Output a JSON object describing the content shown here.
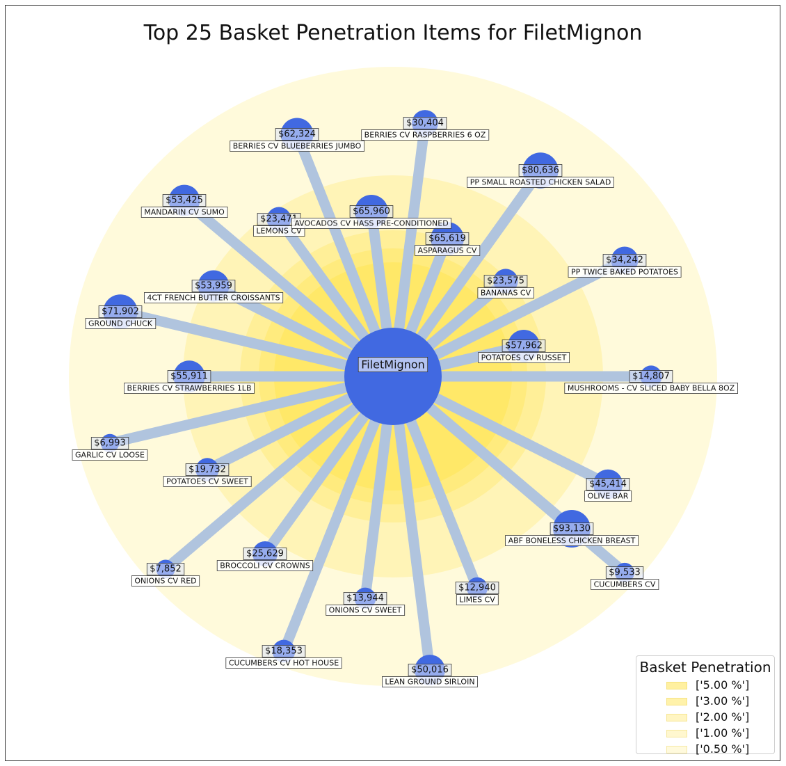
{
  "title": "Top 25 Basket Penetration Items for FiletMignon",
  "chart_data": {
    "type": "network",
    "center": {
      "label": "FiletMignon",
      "color": "#4169e1"
    },
    "colors": {
      "node": "#4169e1",
      "edge": "#b0c4de",
      "ring": "#ffe135"
    },
    "legend": {
      "title": "Basket Penetration",
      "placement": "bottom-right",
      "entries": [
        "['5.00 %']",
        "['3.00 %']",
        "['2.00 %']",
        "['1.00 %']",
        "['0.50 %']"
      ]
    },
    "items": [
      {
        "name": "BERRIES CV BLUEBERRIES JUMBO",
        "sales": "$62,324",
        "sales_value": 62324
      },
      {
        "name": "BERRIES CV RASPBERRIES 6 OZ",
        "sales": "$30,404",
        "sales_value": 30404
      },
      {
        "name": "PP SMALL ROASTED CHICKEN SALAD",
        "sales": "$80,636",
        "sales_value": 80636
      },
      {
        "name": "MANDARIN CV SUMO",
        "sales": "$53,425",
        "sales_value": 53425
      },
      {
        "name": "LEMONS CV",
        "sales": "$23,471",
        "sales_value": 23471
      },
      {
        "name": "AVOCADOS CV HASS PRE-CONDITIONED",
        "sales": "$65,960",
        "sales_value": 65960
      },
      {
        "name": "ASPARAGUS CV",
        "sales": "$65,619",
        "sales_value": 65619
      },
      {
        "name": "PP TWICE BAKED POTATOES",
        "sales": "$34,242",
        "sales_value": 34242
      },
      {
        "name": "4CT FRENCH BUTTER CROISSANTS",
        "sales": "$53,959",
        "sales_value": 53959
      },
      {
        "name": "BANANAS CV",
        "sales": "$23,575",
        "sales_value": 23575
      },
      {
        "name": "GROUND CHUCK",
        "sales": "$71,902",
        "sales_value": 71902
      },
      {
        "name": "POTATOES CV RUSSET",
        "sales": "$57,962",
        "sales_value": 57962
      },
      {
        "name": "BERRIES CV STRAWBERRIES 1LB",
        "sales": "$55,911",
        "sales_value": 55911
      },
      {
        "name": "MUSHROOMS - CV SLICED BABY BELLA 8OZ",
        "sales": "$14,807",
        "sales_value": 14807
      },
      {
        "name": "GARLIC CV LOOSE",
        "sales": "$6,993",
        "sales_value": 6993
      },
      {
        "name": "POTATOES CV SWEET",
        "sales": "$19,732",
        "sales_value": 19732
      },
      {
        "name": "OLIVE BAR",
        "sales": "$45,414",
        "sales_value": 45414
      },
      {
        "name": "ABF BONELESS CHICKEN BREAST",
        "sales": "$93,130",
        "sales_value": 93130
      },
      {
        "name": "BROCCOLI CV CROWNS",
        "sales": "$25,629",
        "sales_value": 25629
      },
      {
        "name": "ONIONS CV RED",
        "sales": "$7,852",
        "sales_value": 7852
      },
      {
        "name": "CUCUMBERS CV",
        "sales": "$9,533",
        "sales_value": 9533
      },
      {
        "name": "LIMES CV",
        "sales": "$12,940",
        "sales_value": 12940
      },
      {
        "name": "ONIONS CV SWEET",
        "sales": "$13,944",
        "sales_value": 13944
      },
      {
        "name": "CUCUMBERS CV HOT HOUSE",
        "sales": "$18,353",
        "sales_value": 18353
      },
      {
        "name": "LEAN GROUND SIRLOIN",
        "sales": "$50,016",
        "sales_value": 50016
      }
    ]
  }
}
